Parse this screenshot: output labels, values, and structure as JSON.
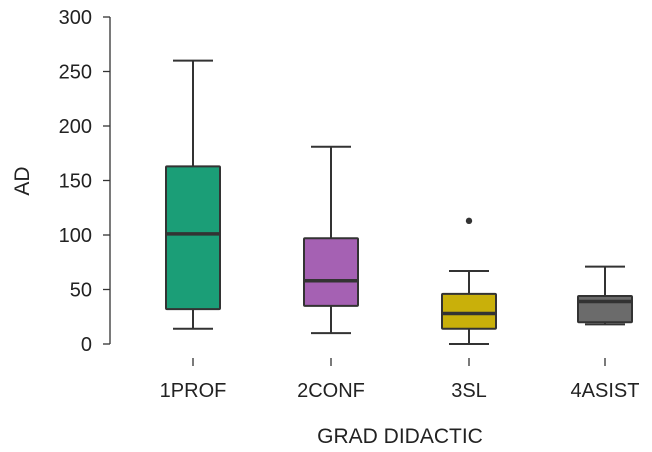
{
  "chart_data": {
    "type": "box",
    "title": "",
    "xlabel": "GRAD DIDACTIC",
    "ylabel": "AD",
    "ylim": [
      0,
      300
    ],
    "yticks": [
      0,
      50,
      100,
      150,
      200,
      250,
      300
    ],
    "grid": false,
    "legend": "none",
    "categories": [
      "1PROF",
      "2CONF",
      "3SL",
      "4ASIST"
    ],
    "boxes": [
      {
        "category": "1PROF",
        "whisker_low": 14,
        "q1": 32,
        "median": 101,
        "q3": 163,
        "whisker_high": 260,
        "outliers": [],
        "color": "#1b9e77"
      },
      {
        "category": "2CONF",
        "whisker_low": 10,
        "q1": 35,
        "median": 58,
        "q3": 97,
        "whisker_high": 181,
        "outliers": [],
        "color": "#a561b3"
      },
      {
        "category": "3SL",
        "whisker_low": 0,
        "q1": 14,
        "median": 28,
        "q3": 46,
        "whisker_high": 67,
        "outliers": [
          113
        ],
        "color": "#c9b00a"
      },
      {
        "category": "4ASIST",
        "whisker_low": 18,
        "q1": 20,
        "median": 39,
        "q3": 44,
        "whisker_high": 71,
        "outliers": [],
        "color": "#6b6b6b"
      }
    ]
  }
}
